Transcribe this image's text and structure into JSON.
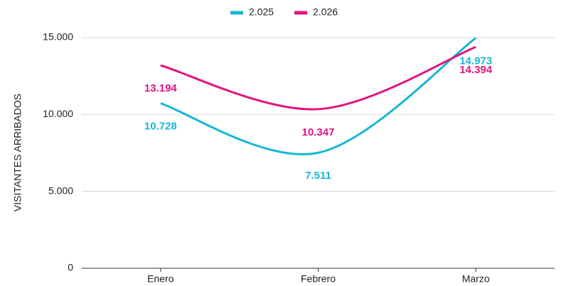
{
  "chart_data": {
    "type": "line",
    "y_label": "VISITANTES ARRIBADOS",
    "categories": [
      "Enero",
      "Febrero",
      "Marzo"
    ],
    "series": [
      {
        "name": "2.025",
        "color": "#17b6d4",
        "values": [
          10728,
          7511,
          14973
        ],
        "value_labels": [
          "10.728",
          "7.511",
          "14.973"
        ]
      },
      {
        "name": "2.026",
        "color": "#e0147f",
        "values": [
          13194,
          10347,
          14394
        ],
        "value_labels": [
          "13.194",
          "10.347",
          "14.394"
        ]
      }
    ],
    "ylim": [
      0,
      15000
    ],
    "yticks": [
      0,
      {
        "value": 5000,
        "label": "5.000"
      },
      {
        "value": 10000,
        "label": "10.000"
      },
      {
        "value": 15000,
        "label": "15.000"
      }
    ],
    "grid": true,
    "smooth": true,
    "legend": "top"
  }
}
